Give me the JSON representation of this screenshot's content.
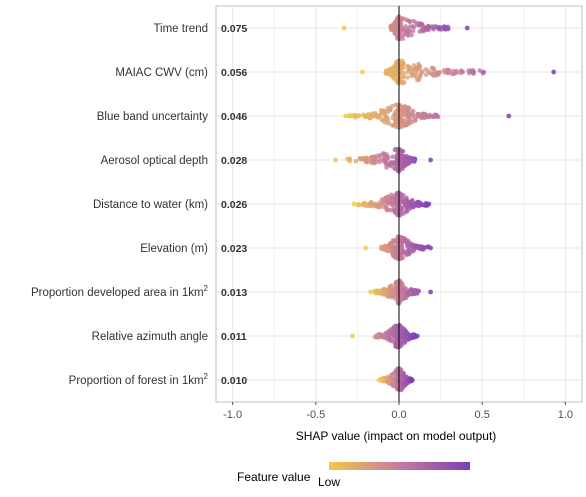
{
  "chart_data": {
    "type": "scatter",
    "subtype": "shap-beeswarm",
    "xlabel": "SHAP value (impact on model output)",
    "xlim": [
      -1.1,
      1.1
    ],
    "xticks": [
      -1.0,
      -0.5,
      0.0,
      0.5,
      1.0
    ],
    "xtick_labels": [
      "-1.0",
      "-0.5",
      "0.0",
      "0.5",
      "1.0"
    ],
    "grid": true,
    "zero_line": true,
    "legend": {
      "title": "Feature value",
      "low_label": "Low",
      "placement": "bottom",
      "colors": [
        "#f2c94c",
        "#c47a9c",
        "#7d3fb7"
      ]
    },
    "features": [
      {
        "name": "Time trend",
        "mean_abs_shap": "0.075",
        "min": -0.33,
        "max": 0.41,
        "core": [
          -0.05,
          0.3
        ]
      },
      {
        "name": "MAIAC CWV (cm)",
        "mean_abs_shap": "0.056",
        "min": -0.22,
        "max": 0.93,
        "core": [
          -0.08,
          0.52
        ]
      },
      {
        "name": "Blue band uncertainty",
        "mean_abs_shap": "0.046",
        "min": -0.32,
        "max": 0.66,
        "core": [
          -0.3,
          0.24
        ]
      },
      {
        "name": "Aerosol optical depth",
        "mean_abs_shap": "0.028",
        "min": -0.38,
        "max": 0.19,
        "core": [
          -0.32,
          0.1
        ]
      },
      {
        "name": "Distance to water (km)",
        "mean_abs_shap": "0.026",
        "min": -0.27,
        "max": 0.18,
        "core": [
          -0.25,
          0.17
        ]
      },
      {
        "name": "Elevation (m)",
        "mean_abs_shap": "0.023",
        "min": -0.2,
        "max": 0.19,
        "core": [
          -0.12,
          0.18
        ]
      },
      {
        "name": "Proportion developed area in 1km",
        "name_sup": "2",
        "mean_abs_shap": "0.013",
        "min": -0.17,
        "max": 0.19,
        "core": [
          -0.15,
          0.12
        ]
      },
      {
        "name": "Relative azimuth angle",
        "mean_abs_shap": "0.011",
        "min": -0.28,
        "max": 0.11,
        "core": [
          -0.15,
          0.1
        ]
      },
      {
        "name": "Proportion of forest in 1km",
        "name_sup": "2",
        "mean_abs_shap": "0.010",
        "min": -0.12,
        "max": 0.08,
        "core": [
          -0.11,
          0.08
        ]
      }
    ]
  }
}
